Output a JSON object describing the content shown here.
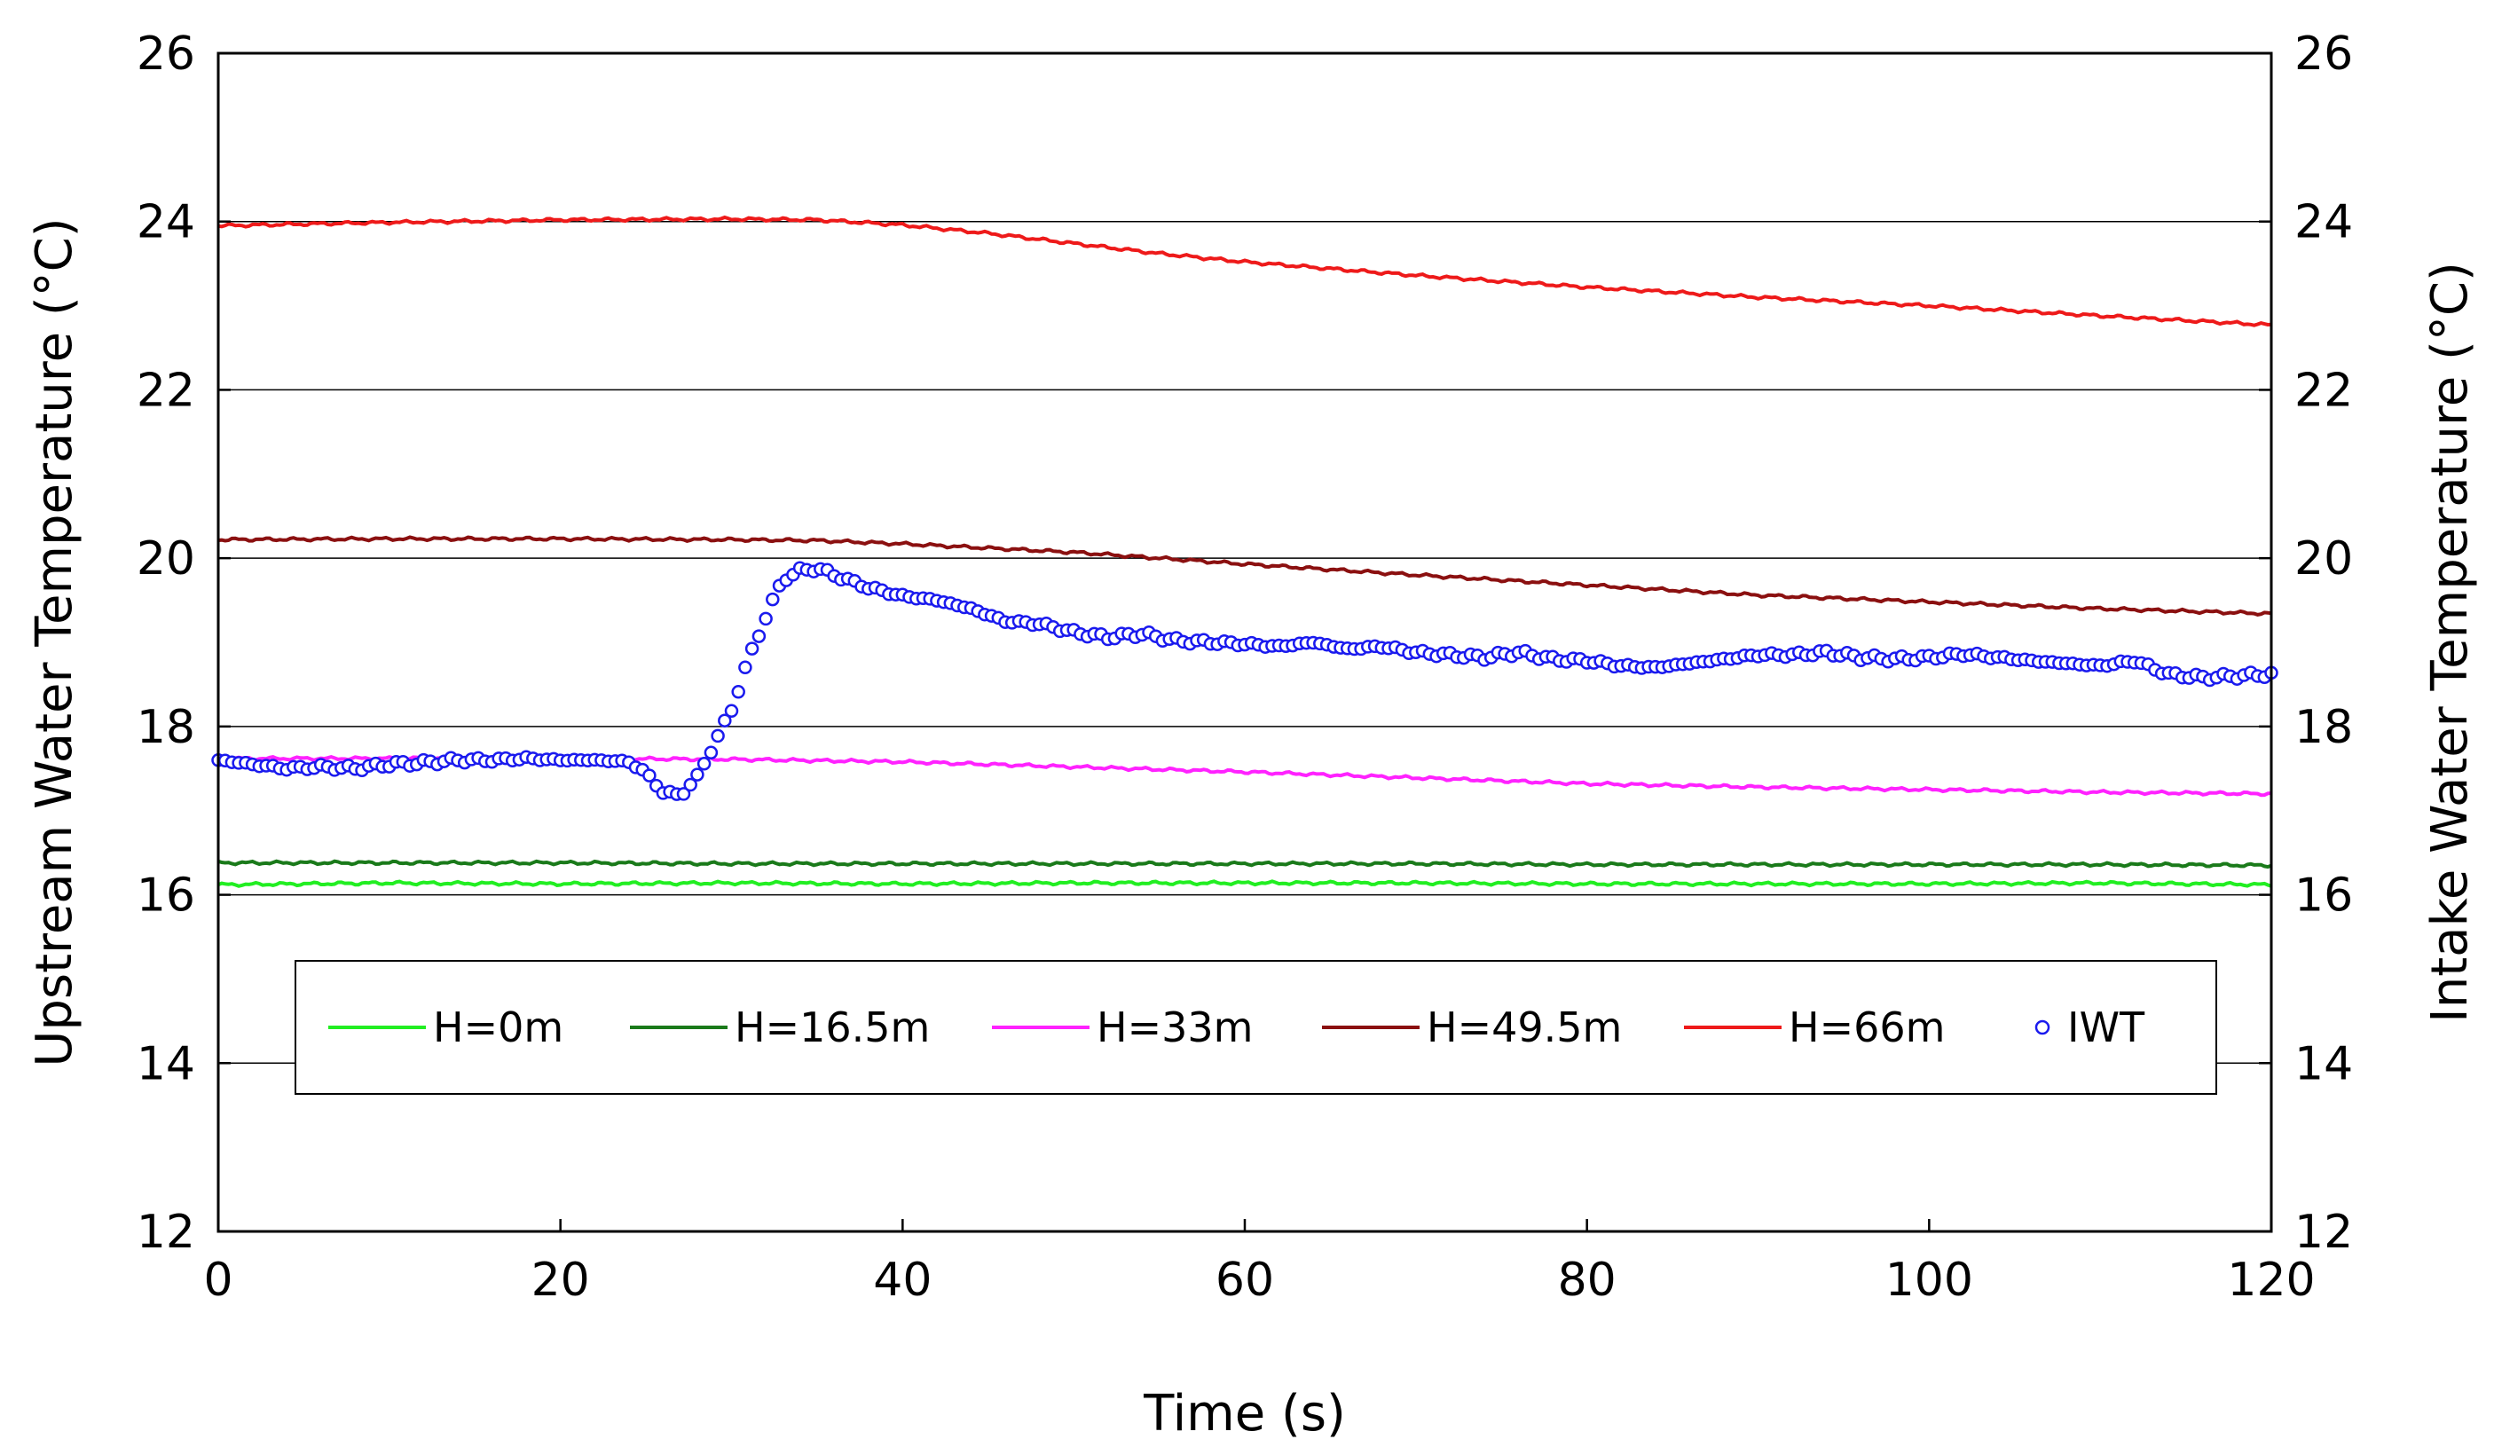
{
  "chart_data": {
    "type": "line",
    "xlabel": "Time (s)",
    "ylabel_left": "Upstream Water Temperature (°C)",
    "ylabel_right": "Intake Water Temperature (°C)",
    "xlim": [
      0,
      120
    ],
    "ylim": [
      12,
      26
    ],
    "xticks": [
      0,
      20,
      40,
      60,
      80,
      100,
      120
    ],
    "yticks": [
      12,
      14,
      16,
      18,
      20,
      22,
      24,
      26
    ],
    "grid": "horizontal",
    "legend_position": "lower-center",
    "series": [
      {
        "name": "H=0m",
        "color": "#22ee22",
        "style": "line",
        "x": [
          0,
          10,
          20,
          30,
          40,
          50,
          60,
          70,
          80,
          90,
          100,
          110,
          120
        ],
        "y": [
          16.12,
          16.14,
          16.13,
          16.14,
          16.13,
          16.14,
          16.14,
          16.14,
          16.13,
          16.13,
          16.13,
          16.14,
          16.12
        ]
      },
      {
        "name": "H=16.5m",
        "color": "#1a7a1a",
        "style": "line",
        "x": [
          0,
          10,
          20,
          30,
          40,
          50,
          60,
          70,
          80,
          90,
          100,
          110,
          120
        ],
        "y": [
          16.38,
          16.38,
          16.38,
          16.37,
          16.37,
          16.37,
          16.37,
          16.37,
          16.36,
          16.36,
          16.36,
          16.36,
          16.35
        ]
      },
      {
        "name": "H=33m",
        "color": "#ff22ff",
        "style": "line",
        "x": [
          0,
          10,
          20,
          30,
          40,
          50,
          60,
          70,
          80,
          90,
          100,
          110,
          120
        ],
        "y": [
          17.62,
          17.62,
          17.62,
          17.61,
          17.58,
          17.52,
          17.46,
          17.39,
          17.32,
          17.28,
          17.25,
          17.22,
          17.2
        ]
      },
      {
        "name": "H=49.5m",
        "color": "#8b1010",
        "style": "line",
        "x": [
          0,
          10,
          20,
          30,
          35,
          40,
          50,
          60,
          70,
          80,
          90,
          100,
          110,
          120
        ],
        "y": [
          20.22,
          20.23,
          20.23,
          20.22,
          20.21,
          20.17,
          20.07,
          19.93,
          19.8,
          19.68,
          19.56,
          19.48,
          19.4,
          19.34
        ]
      },
      {
        "name": "H=66m",
        "color": "#ee1a1a",
        "style": "line",
        "x": [
          0,
          10,
          20,
          30,
          35,
          40,
          45,
          50,
          55,
          60,
          70,
          80,
          90,
          100,
          110,
          120
        ],
        "y": [
          23.95,
          23.99,
          24.02,
          24.03,
          24.02,
          23.96,
          23.86,
          23.74,
          23.62,
          23.52,
          23.36,
          23.22,
          23.1,
          23.0,
          22.88,
          22.77
        ]
      },
      {
        "name": "IWT",
        "color": "#1a1aee",
        "style": "markers",
        "x": [
          0,
          2,
          4,
          6,
          8,
          10,
          12,
          14,
          16,
          18,
          20,
          22,
          24,
          25,
          26,
          27,
          28,
          29,
          30,
          31,
          32,
          33,
          34,
          35,
          36,
          38,
          40,
          42,
          44,
          46,
          48,
          50,
          52,
          54,
          56,
          58,
          60,
          62,
          64,
          66,
          68,
          70,
          72,
          74,
          76,
          78,
          80,
          82,
          84,
          86,
          88,
          90,
          92,
          94,
          96,
          98,
          100,
          102,
          104,
          106,
          108,
          110,
          112,
          114,
          116,
          118,
          120
        ],
        "y": [
          17.6,
          17.55,
          17.5,
          17.52,
          17.5,
          17.55,
          17.57,
          17.6,
          17.6,
          17.62,
          17.6,
          17.6,
          17.58,
          17.45,
          17.22,
          17.18,
          17.4,
          17.8,
          18.2,
          18.8,
          19.3,
          19.75,
          19.85,
          19.88,
          19.8,
          19.65,
          19.55,
          19.5,
          19.4,
          19.25,
          19.22,
          19.12,
          19.06,
          19.1,
          19.02,
          19.0,
          18.98,
          18.95,
          19.0,
          18.92,
          18.95,
          18.88,
          18.85,
          18.82,
          18.88,
          18.8,
          18.78,
          18.72,
          18.7,
          18.75,
          18.8,
          18.85,
          18.85,
          18.88,
          18.82,
          18.8,
          18.82,
          18.86,
          18.82,
          18.78,
          18.75,
          18.72,
          18.78,
          18.62,
          18.58,
          18.6,
          18.62
        ]
      }
    ]
  }
}
